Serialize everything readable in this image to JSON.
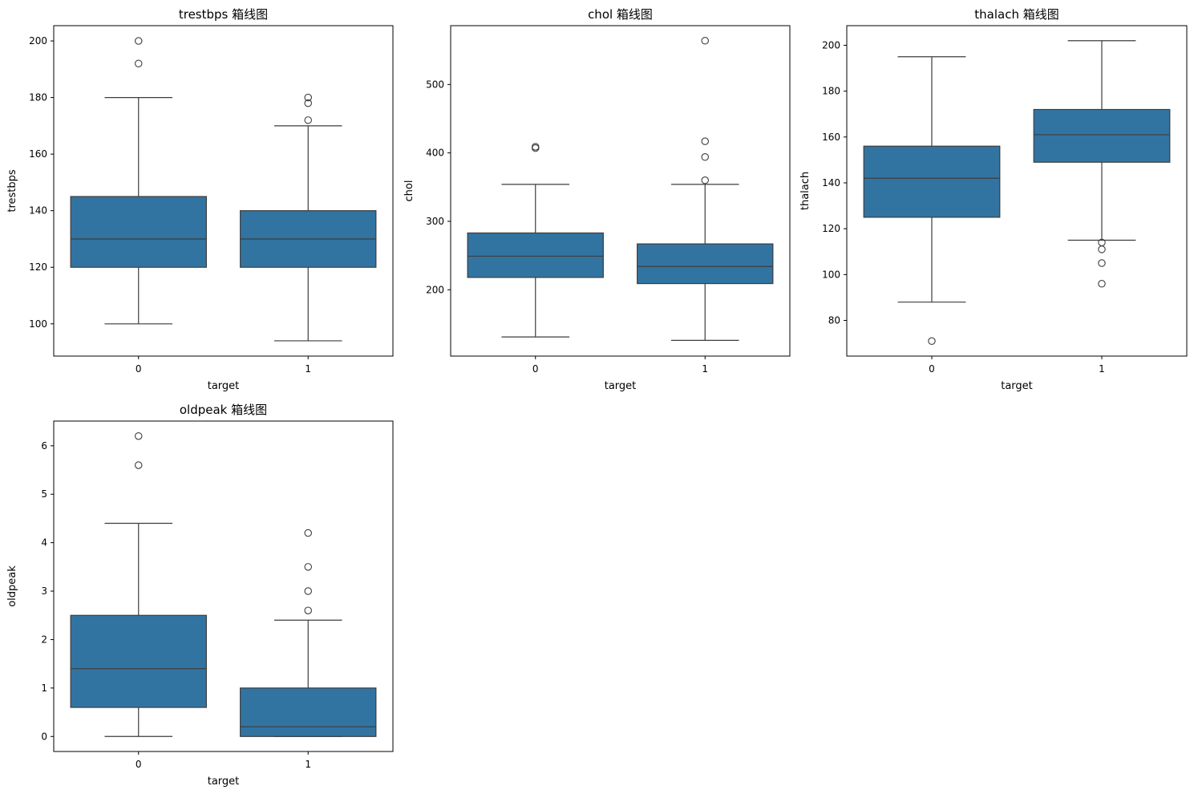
{
  "chart_data": [
    {
      "type": "box",
      "title": "trestbps 箱线图",
      "xlabel": "target",
      "ylabel": "trestbps",
      "categories": [
        "0",
        "1"
      ],
      "ylim": [
        88.6,
        205.4
      ],
      "yticks": [
        100,
        120,
        140,
        160,
        180,
        200
      ],
      "color": "#3274a1",
      "boxes": [
        {
          "category": "0",
          "whisker_low": 100,
          "q1": 120,
          "median": 130,
          "q3": 145,
          "whisker_high": 180,
          "outliers": [
            192,
            200
          ]
        },
        {
          "category": "1",
          "whisker_low": 94,
          "q1": 120,
          "median": 130,
          "q3": 140,
          "whisker_high": 170,
          "outliers": [
            172,
            178,
            180
          ]
        }
      ]
    },
    {
      "type": "box",
      "title": "chol 箱线图",
      "xlabel": "target",
      "ylabel": "chol",
      "categories": [
        "0",
        "1"
      ],
      "ylim": [
        103,
        586
      ],
      "yticks": [
        200,
        300,
        400,
        500
      ],
      "color": "#3274a1",
      "boxes": [
        {
          "category": "0",
          "whisker_low": 131,
          "q1": 218,
          "median": 249,
          "q3": 283,
          "whisker_high": 354,
          "outliers": [
            407,
            409
          ]
        },
        {
          "category": "1",
          "whisker_low": 126,
          "q1": 209,
          "median": 234,
          "q3": 267,
          "whisker_high": 354,
          "outliers": [
            360,
            394,
            417,
            564
          ]
        }
      ]
    },
    {
      "type": "box",
      "title": "thalach 箱线图",
      "xlabel": "target",
      "ylabel": "thalach",
      "categories": [
        "0",
        "1"
      ],
      "ylim": [
        64.45,
        208.55
      ],
      "yticks": [
        80,
        100,
        120,
        140,
        160,
        180,
        200
      ],
      "color": "#3274a1",
      "boxes": [
        {
          "category": "0",
          "whisker_low": 88,
          "q1": 125,
          "median": 142,
          "q3": 156,
          "whisker_high": 195,
          "outliers": [
            71
          ]
        },
        {
          "category": "1",
          "whisker_low": 115,
          "q1": 149,
          "median": 161,
          "q3": 172,
          "whisker_high": 202,
          "outliers": [
            114,
            111,
            105,
            96
          ]
        }
      ]
    },
    {
      "type": "box",
      "title": "oldpeak 箱线图",
      "xlabel": "target",
      "ylabel": "oldpeak",
      "categories": [
        "0",
        "1"
      ],
      "ylim": [
        -0.31,
        6.51
      ],
      "yticks": [
        0,
        1,
        2,
        3,
        4,
        5,
        6
      ],
      "color": "#3274a1",
      "boxes": [
        {
          "category": "0",
          "whisker_low": 0,
          "q1": 0.6,
          "median": 1.4,
          "q3": 2.5,
          "whisker_high": 4.4,
          "outliers": [
            5.6,
            6.2
          ]
        },
        {
          "category": "1",
          "whisker_low": 0,
          "q1": 0,
          "median": 0.2,
          "q3": 1.0,
          "whisker_high": 2.4,
          "outliers": [
            2.6,
            3.0,
            3.5,
            4.2
          ]
        }
      ]
    }
  ]
}
